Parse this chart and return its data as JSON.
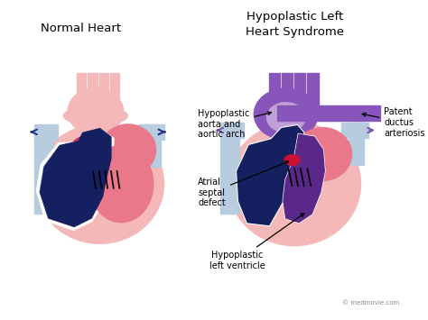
{
  "title_left": "Normal Heart",
  "title_right": "Hypoplastic Left\nHeart Syndrome",
  "bg_color": "#ffffff",
  "labels": {
    "hypoplastic_aorta": "Hypoplastic\naorta and\naortic arch",
    "patent_ductus": "Patent\nductus\narteriosis",
    "atrial_septal": "Atrial\nseptal\ndefect",
    "hypoplastic_lv": "Hypoplastic\nleft ventricle"
  },
  "watermark": "© medmovie.com",
  "colors": {
    "pink_light": "#f5b8b8",
    "pink_medium": "#e8788a",
    "red_medium": "#cc3355",
    "blue_dark": "#152060",
    "blue_medium": "#2244aa",
    "blue_light": "#a8bcd8",
    "blue_very_light": "#b8ccE0",
    "purple_light": "#c0a0d8",
    "purple_medium": "#8855bb",
    "purple_dark": "#5a2888",
    "white": "#ffffff",
    "black": "#111111",
    "arrow_blue_dark": "#223388",
    "arrow_purple": "#7755aa"
  }
}
